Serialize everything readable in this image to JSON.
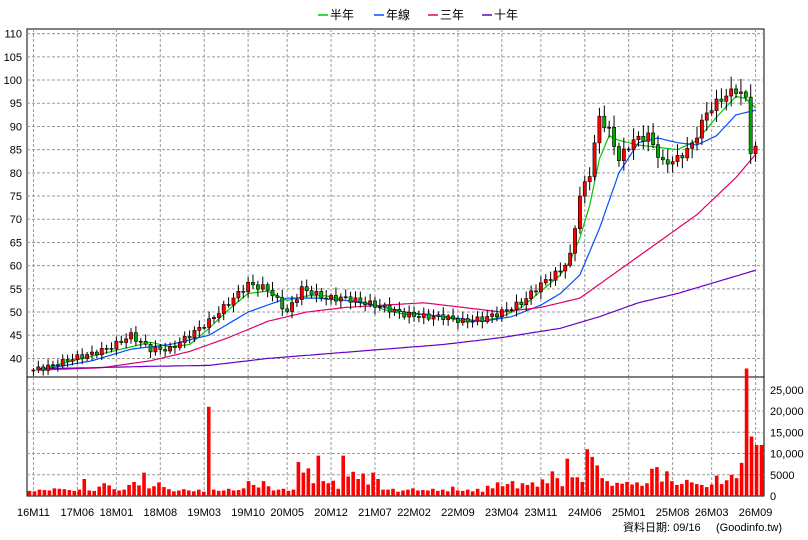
{
  "legend": [
    {
      "label": "半年",
      "color": "#00c800"
    },
    {
      "label": "年線",
      "color": "#0050ff"
    },
    {
      "label": "三年",
      "color": "#e0006a"
    },
    {
      "label": "十年",
      "color": "#6a00c8"
    }
  ],
  "footer": {
    "date_label": "資料日期: 09/16",
    "source": "(Goodinfo.tw)"
  },
  "chart_data": [
    {
      "type": "candlestick",
      "title": "",
      "ylim": [
        36,
        111
      ],
      "yticks": [
        40,
        45,
        50,
        55,
        60,
        65,
        70,
        75,
        80,
        85,
        90,
        95,
        100,
        105,
        110
      ],
      "grid": true,
      "legend_position": "top-center",
      "x_tick_labels": [
        "16M11",
        "17M06",
        "18M01",
        "18M08",
        "19M03",
        "19M10",
        "20M05",
        "20M12",
        "21M07",
        "22M02",
        "22M09",
        "23M04",
        "23M11",
        "24M06",
        "25M01",
        "25M08",
        "26M03",
        "26M09"
      ],
      "close_anchors": [
        [
          0,
          37.5
        ],
        [
          4,
          38.5
        ],
        [
          8,
          40
        ],
        [
          12,
          41
        ],
        [
          16,
          42.5
        ],
        [
          20,
          45
        ],
        [
          24,
          42
        ],
        [
          28,
          42
        ],
        [
          32,
          45
        ],
        [
          36,
          48
        ],
        [
          40,
          52
        ],
        [
          44,
          56
        ],
        [
          48,
          55
        ],
        [
          52,
          50
        ],
        [
          55,
          55
        ],
        [
          60,
          53
        ],
        [
          64,
          53
        ],
        [
          68,
          52
        ],
        [
          72,
          51
        ],
        [
          76,
          49.5
        ],
        [
          80,
          49
        ],
        [
          84,
          49
        ],
        [
          88,
          48
        ],
        [
          92,
          48.5
        ],
        [
          96,
          50
        ],
        [
          100,
          52
        ],
        [
          104,
          56
        ],
        [
          108,
          59
        ],
        [
          110,
          62
        ],
        [
          112,
          75
        ],
        [
          114,
          80
        ],
        [
          116,
          92
        ],
        [
          118,
          89
        ],
        [
          120,
          83
        ],
        [
          123,
          87
        ],
        [
          126,
          88
        ],
        [
          129,
          82
        ],
        [
          132,
          83
        ],
        [
          135,
          86
        ],
        [
          138,
          93
        ],
        [
          141,
          96
        ],
        [
          144,
          98
        ],
        [
          146,
          96
        ],
        [
          147,
          85
        ],
        [
          148,
          85
        ]
      ],
      "ma_series": [
        {
          "name": "半年",
          "color": "#00c800",
          "anchors": [
            [
              1,
              37.5
            ],
            [
              8,
              39.5
            ],
            [
              16,
              41.5
            ],
            [
              24,
              43.5
            ],
            [
              28,
              42.5
            ],
            [
              32,
              43
            ],
            [
              36,
              46.5
            ],
            [
              40,
              50.5
            ],
            [
              44,
              54
            ],
            [
              48,
              54.5
            ],
            [
              52,
              52.5
            ],
            [
              56,
              53.5
            ],
            [
              60,
              53.5
            ],
            [
              64,
              52.5
            ],
            [
              68,
              52
            ],
            [
              72,
              50.5
            ],
            [
              76,
              49.5
            ],
            [
              80,
              49.5
            ],
            [
              84,
              49
            ],
            [
              88,
              48
            ],
            [
              92,
              48
            ],
            [
              96,
              49
            ],
            [
              100,
              51
            ],
            [
              104,
              54.5
            ],
            [
              108,
              58
            ],
            [
              110,
              61
            ],
            [
              112,
              66
            ],
            [
              114,
              73
            ],
            [
              116,
              83
            ],
            [
              118,
              88
            ],
            [
              120,
              87
            ],
            [
              124,
              86
            ],
            [
              128,
              85.5
            ],
            [
              132,
              85
            ],
            [
              136,
              87
            ],
            [
              140,
              92
            ],
            [
              144,
              96.5
            ],
            [
              146,
              96
            ],
            [
              148,
              94
            ]
          ]
        },
        {
          "name": "年線",
          "color": "#0050ff",
          "anchors": [
            [
              1,
              37.5
            ],
            [
              12,
              39.5
            ],
            [
              20,
              42
            ],
            [
              28,
              43
            ],
            [
              36,
              45
            ],
            [
              44,
              50
            ],
            [
              52,
              53
            ],
            [
              58,
              53
            ],
            [
              64,
              52.5
            ],
            [
              70,
              51.5
            ],
            [
              76,
              50
            ],
            [
              84,
              49
            ],
            [
              92,
              48
            ],
            [
              98,
              49
            ],
            [
              104,
              51.5
            ],
            [
              108,
              54
            ],
            [
              112,
              58
            ],
            [
              116,
              68
            ],
            [
              120,
              80
            ],
            [
              124,
              86.5
            ],
            [
              128,
              87.5
            ],
            [
              132,
              86.5
            ],
            [
              136,
              86
            ],
            [
              140,
              88
            ],
            [
              144,
              92.5
            ],
            [
              148,
              93.5
            ]
          ]
        },
        {
          "name": "三年",
          "color": "#e0006a",
          "anchors": [
            [
              1,
              37.5
            ],
            [
              14,
              38
            ],
            [
              24,
              39.5
            ],
            [
              32,
              41.5
            ],
            [
              40,
              44.5
            ],
            [
              48,
              48
            ],
            [
              56,
              50
            ],
            [
              64,
              51
            ],
            [
              72,
              51.5
            ],
            [
              80,
              52
            ],
            [
              88,
              51
            ],
            [
              96,
              50
            ],
            [
              104,
              51
            ],
            [
              112,
              53
            ],
            [
              120,
              59
            ],
            [
              128,
              65
            ],
            [
              136,
              71
            ],
            [
              144,
              79
            ],
            [
              148,
              84
            ]
          ]
        },
        {
          "name": "十年",
          "color": "#6a00c8",
          "anchors": [
            [
              1,
              37.8
            ],
            [
              12,
              38
            ],
            [
              24,
              38.3
            ],
            [
              36,
              38.5
            ],
            [
              48,
              40
            ],
            [
              60,
              41
            ],
            [
              72,
              42
            ],
            [
              84,
              43
            ],
            [
              96,
              44.5
            ],
            [
              108,
              46.5
            ],
            [
              116,
              49
            ],
            [
              124,
              52
            ],
            [
              132,
              54
            ],
            [
              140,
              56.5
            ],
            [
              148,
              59
            ]
          ]
        }
      ]
    },
    {
      "type": "bar",
      "ylim": [
        0,
        28000
      ],
      "yticks": [
        0,
        5000,
        10000,
        15000,
        20000,
        25000
      ],
      "ytick_labels": [
        "0",
        "5000",
        "10,000",
        "15,000",
        "20,000",
        "25,000"
      ],
      "color": "#ff0000",
      "values": [
        1200,
        1100,
        1500,
        1400,
        1300,
        1800,
        1700,
        1600,
        1400,
        1200,
        1500,
        4000,
        1300,
        1200,
        2200,
        3000,
        2500,
        1600,
        1300,
        1500,
        2600,
        3300,
        2500,
        5500,
        1800,
        2300,
        3200,
        2100,
        1600,
        1100,
        1300,
        1600,
        1300,
        1100,
        1500,
        1000,
        21000,
        1500,
        1200,
        1300,
        1700,
        1300,
        1400,
        1800,
        3500,
        2600,
        2000,
        3500,
        2300,
        1300,
        1500,
        1700,
        1200,
        1500,
        8000,
        5500,
        6500,
        3000,
        9500,
        3500,
        3000,
        3600,
        1700,
        9500,
        4600,
        5700,
        4000,
        5300,
        2700,
        5500,
        4000,
        1500,
        1500,
        1700,
        1000,
        1300,
        1500,
        1800,
        1300,
        1400,
        1300,
        1700,
        1200,
        1500,
        1100,
        2200,
        1300,
        1200,
        1500,
        1100,
        1700,
        1000,
        2400,
        1800,
        3200,
        2300,
        2800,
        3500,
        1800,
        3000,
        2600,
        3200,
        2200,
        3900,
        3000,
        5800,
        4200,
        2300,
        8800,
        4400,
        4400,
        3300,
        11000,
        9200,
        7200,
        4200,
        3500,
        2400,
        3100,
        2900,
        3300,
        2700,
        3200,
        2400,
        3000,
        6400,
        6800,
        3400,
        5800,
        3500,
        2600,
        2800,
        3800,
        3200,
        2800,
        2600,
        2100,
        2700,
        4800,
        2800,
        3700,
        5000,
        4200,
        7800,
        30000,
        14000,
        12000,
        12000
      ]
    }
  ]
}
